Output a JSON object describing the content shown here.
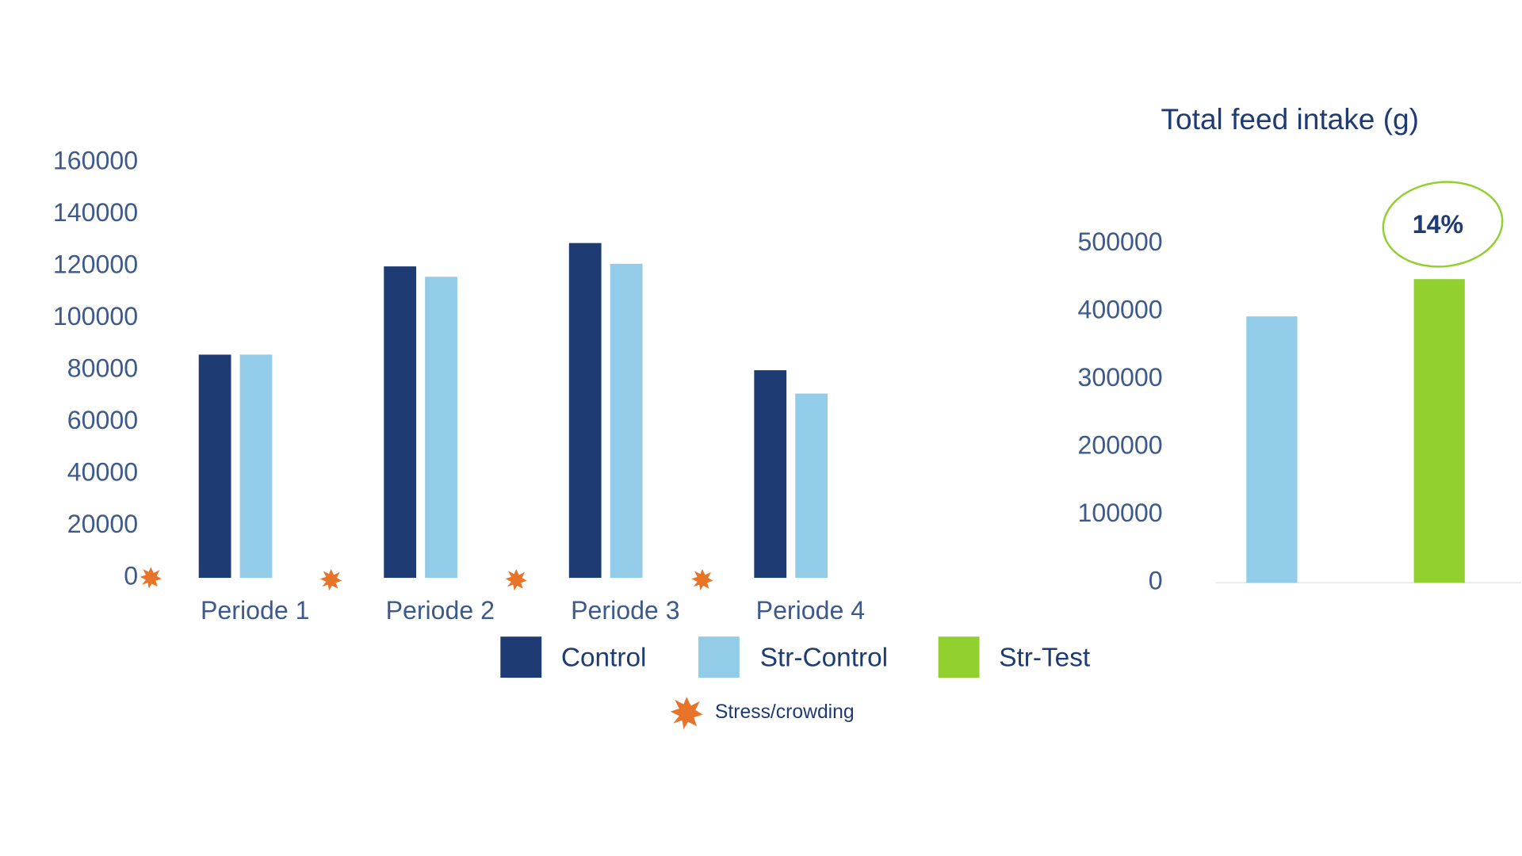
{
  "chart_data": [
    {
      "type": "bar",
      "categories": [
        "Periode 1",
        "Periode 2",
        "Periode 3",
        "Periode 4"
      ],
      "series": [
        {
          "name": "Control",
          "color": "#1f3b73",
          "values": [
            86000,
            120000,
            129000,
            80000
          ]
        },
        {
          "name": "Str-Control",
          "color": "#92cce8",
          "values": [
            86000,
            116000,
            121000,
            71000
          ]
        }
      ],
      "ylim": [
        0,
        160000
      ],
      "yticks": [
        0,
        20000,
        40000,
        60000,
        80000,
        100000,
        120000,
        140000,
        160000
      ]
    },
    {
      "type": "bar",
      "title": "Total feed intake (g)",
      "categories": [
        null,
        null
      ],
      "values": [
        393000,
        448000
      ],
      "colors": [
        "#92cce8",
        "#92d030"
      ],
      "annotation": "14%",
      "ylim": [
        0,
        500000
      ],
      "yticks": [
        0,
        100000,
        200000,
        300000,
        400000,
        500000
      ]
    }
  ],
  "legend": [
    {
      "name": "Control",
      "color": "#1f3b73"
    },
    {
      "name": "Str-Control",
      "color": "#92cce8"
    },
    {
      "name": "Str-Test",
      "color": "#92d030"
    }
  ],
  "annotation": "Stress/crowding"
}
